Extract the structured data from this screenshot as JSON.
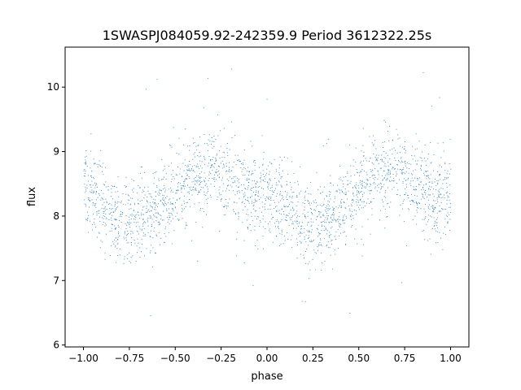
{
  "chart_data": {
    "type": "scatter",
    "title": "1SWASPJ084059.92-242359.9 Period 3612322.25s",
    "xlabel": "phase",
    "ylabel": "flux",
    "xlim": [
      -1.1,
      1.1
    ],
    "ylim": [
      5.97,
      10.62
    ],
    "xticks": [
      -1.0,
      -0.75,
      -0.5,
      -0.25,
      0.0,
      0.25,
      0.5,
      0.75,
      1.0
    ],
    "xtick_labels": [
      "−1.00",
      "−0.75",
      "−0.50",
      "−0.25",
      "0.00",
      "0.25",
      "0.50",
      "0.75",
      "1.00"
    ],
    "yticks": [
      6,
      7,
      8,
      9,
      10
    ],
    "ytick_labels": [
      "6",
      "7",
      "8",
      "9",
      "10"
    ],
    "grid": false,
    "marker_color": "#1f77b4",
    "series": [
      {
        "curve_phase": [
          -1.0,
          -0.9,
          -0.8,
          -0.7,
          -0.6,
          -0.5,
          -0.4,
          -0.3,
          -0.2,
          -0.1,
          0.0,
          0.1,
          0.2,
          0.3,
          0.4,
          0.5,
          0.6,
          0.7,
          0.8,
          0.9,
          1.0
        ],
        "curve_flux": [
          8.45,
          8.2,
          7.9,
          8.0,
          8.1,
          8.35,
          8.6,
          8.75,
          8.55,
          8.3,
          8.25,
          8.15,
          7.85,
          7.95,
          8.1,
          8.35,
          8.6,
          8.75,
          8.5,
          8.3,
          8.3
        ],
        "flux_scatter": 0.32,
        "outlier_flux_range": [
          6.2,
          10.4
        ]
      }
    ]
  }
}
